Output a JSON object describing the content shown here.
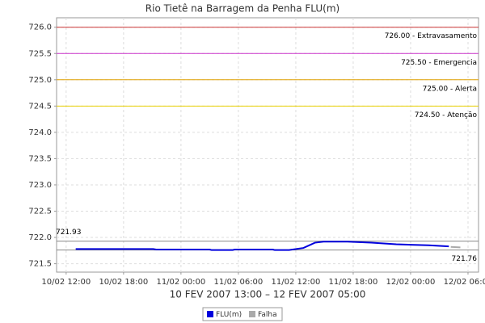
{
  "chart_data": {
    "type": "line",
    "title": "Rio Tietê na Barragem da Penha FLU(m)",
    "x_label": "10 FEV 2007 13:00 – 12 FEV 2007 05:00",
    "xlim": [
      11.0,
      55.1
    ],
    "xticks": [
      {
        "value": 12,
        "label": "10/02 12:00"
      },
      {
        "value": 18,
        "label": "10/02 18:00"
      },
      {
        "value": 24,
        "label": "11/02 00:00"
      },
      {
        "value": 30,
        "label": "11/02 06:00"
      },
      {
        "value": 36,
        "label": "11/02 12:00"
      },
      {
        "value": 42,
        "label": "11/02 18:00"
      },
      {
        "value": 48,
        "label": "12/02 00:00"
      },
      {
        "value": 54,
        "label": "12/02 06:00"
      }
    ],
    "ylim": [
      721.34,
      726.18
    ],
    "yticks": [
      {
        "value": 721.5,
        "label": "721.5"
      },
      {
        "value": 722,
        "label": "722.0"
      },
      {
        "value": 722.5,
        "label": "722.5"
      },
      {
        "value": 723,
        "label": "723.0"
      },
      {
        "value": 723.5,
        "label": "723.5"
      },
      {
        "value": 724,
        "label": "724.0"
      },
      {
        "value": 724.5,
        "label": "724.5"
      },
      {
        "value": 725,
        "label": "725.0"
      },
      {
        "value": 725.5,
        "label": "725.5"
      },
      {
        "value": 726,
        "label": "726.0"
      }
    ],
    "grid": true,
    "thresholds": [
      {
        "value": 726,
        "label": "726.00 - Extravasamento",
        "color": "#cc3333"
      },
      {
        "value": 725.5,
        "label": "725.50 - Emergencia",
        "color": "#cc33cc"
      },
      {
        "value": 725,
        "label": "725.00 - Alerta",
        "color": "#e0a000"
      },
      {
        "value": 724.5,
        "label": "724.50 - Atenção",
        "color": "#e8d000"
      }
    ],
    "reference_lines": [
      {
        "value": 721.93,
        "side": "left"
      },
      {
        "value": 721.76,
        "side": "right"
      }
    ],
    "series": [
      {
        "name": "FLU(m)",
        "color": "#0000dd",
        "x": [
          13.0,
          21.1,
          21.4,
          27.0,
          27.2,
          29.4,
          29.6,
          33.6,
          33.8,
          35.3,
          36.8,
          38.0,
          38.9,
          41.4,
          43.9,
          46.5,
          49.9,
          52.0
        ],
        "values": [
          721.78,
          721.78,
          721.77,
          721.77,
          721.76,
          721.76,
          721.77,
          721.77,
          721.76,
          721.76,
          721.8,
          721.9,
          721.92,
          721.92,
          721.9,
          721.87,
          721.85,
          721.83
        ]
      },
      {
        "name": "Falha",
        "color": "#aaaaaa",
        "x": [
          52.2,
          53.2
        ],
        "values": [
          721.82,
          721.81
        ]
      }
    ],
    "legend": "bottom"
  }
}
